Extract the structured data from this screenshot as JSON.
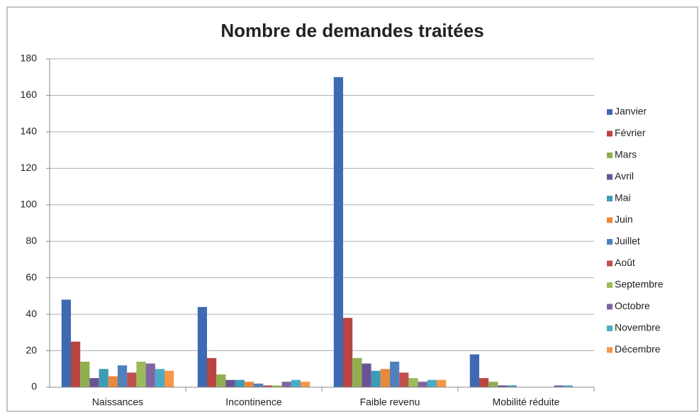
{
  "chart_data": {
    "type": "bar",
    "title": "Nombre de demandes traitées",
    "categories": [
      "Naissances",
      "Incontinence",
      "Faible revenu",
      "Mobilité réduite"
    ],
    "series": [
      {
        "name": "Janvier",
        "color": "#3d6ab3",
        "values": [
          48,
          44,
          170,
          18
        ]
      },
      {
        "name": "Février",
        "color": "#b94542",
        "values": [
          25,
          16,
          38,
          5
        ]
      },
      {
        "name": "Mars",
        "color": "#8fae4e",
        "values": [
          14,
          7,
          16,
          3
        ]
      },
      {
        "name": "Avril",
        "color": "#6a5394",
        "values": [
          5,
          4,
          13,
          1
        ]
      },
      {
        "name": "Mai",
        "color": "#3e9bb4",
        "values": [
          10,
          4,
          9,
          1
        ]
      },
      {
        "name": "Juin",
        "color": "#e8883c",
        "values": [
          6,
          3,
          10,
          0
        ]
      },
      {
        "name": "Juillet",
        "color": "#4f81bd",
        "values": [
          12,
          2,
          14,
          0
        ]
      },
      {
        "name": "Août",
        "color": "#c0504d",
        "values": [
          8,
          1,
          8,
          0
        ]
      },
      {
        "name": "Septembre",
        "color": "#9bbb59",
        "values": [
          14,
          1,
          5,
          0
        ]
      },
      {
        "name": "Octobre",
        "color": "#8064a2",
        "values": [
          13,
          3,
          3,
          1
        ]
      },
      {
        "name": "Novembre",
        "color": "#4bacc6",
        "values": [
          10,
          4,
          4,
          1
        ]
      },
      {
        "name": "Décembre",
        "color": "#f79646",
        "values": [
          9,
          3,
          4,
          0
        ]
      }
    ],
    "ylim": [
      0,
      180
    ],
    "yticks": [
      0,
      20,
      40,
      60,
      80,
      100,
      120,
      140,
      160,
      180
    ],
    "grid": true,
    "legend": "right"
  }
}
